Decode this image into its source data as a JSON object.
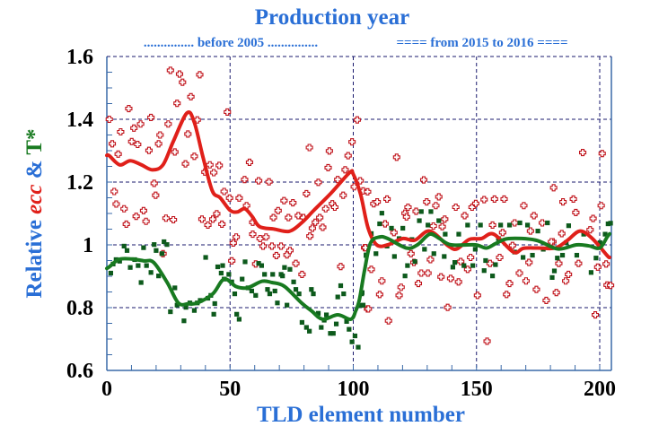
{
  "chart_data": {
    "type": "scatter",
    "title": "Production year",
    "subtitle_segments": [
      {
        "text": "............... before 2005 ...............",
        "x_from": 0,
        "x_to": 100
      },
      {
        "text": "==== from 2015 to 2016 ====",
        "x_from": 100,
        "x_to": 204
      }
    ],
    "xlabel": "TLD element number",
    "ylabel_parts": [
      {
        "text": "Relative ",
        "color": "#2a6fd6",
        "italic": false
      },
      {
        "text": "ecc",
        "color": "#e0201a",
        "italic": true
      },
      {
        "text": " & ",
        "color": "#2a6fd6",
        "italic": false
      },
      {
        "text": "T*",
        "color": "#187a20",
        "italic": false
      }
    ],
    "xlim": [
      0,
      204
    ],
    "ylim": [
      0.6,
      1.6
    ],
    "x_ticks": [
      "0",
      "50",
      "100",
      "150",
      "200"
    ],
    "x_tick_values": [
      0,
      50,
      100,
      150,
      200
    ],
    "y_ticks": [
      "0.6",
      "0.8",
      "1",
      "1.2",
      "1.4",
      "1.6"
    ],
    "y_tick_values": [
      0.6,
      0.8,
      1.0,
      1.2,
      1.4,
      1.6
    ],
    "grid": true,
    "colors": {
      "title": "#2a6fd6",
      "ecc": "#e0201a",
      "ecc_points": "#c0121a",
      "tstar": "#187a20",
      "tstar_points": "#0d5a1c",
      "grid": "#1a1a6e",
      "axis": "#3a6aa8"
    },
    "series": [
      {
        "key": "ecc",
        "kind": "points",
        "x": [
          1,
          2.2,
          4.6,
          3,
          3.8,
          5.6,
          7,
          7.9,
          8.9,
          10.1,
          11,
          11.9,
          12.5,
          13.7,
          14.9,
          15.9,
          17.1,
          17.9,
          19.2,
          19.8,
          21,
          21.6,
          22.8,
          24,
          24.9,
          25.8,
          27,
          27.6,
          28.5,
          29.5,
          30.7,
          31.9,
          32.9,
          34.1,
          35.5,
          36.7,
          37.7,
          38.6,
          39.8,
          41,
          41.8,
          43,
          43.4,
          44.6,
          45.6,
          46.7,
          47.6,
          48.9,
          49.8,
          50.7,
          51.3,
          52.5,
          53.7,
          55.9,
          56.7,
          57.9,
          59.2,
          59.2,
          60.4,
          61.6,
          62.2,
          63.4,
          64.6,
          65.8,
          67,
          67.6,
          68.8,
          69.5,
          70.7,
          71.9,
          73.1,
          73.7,
          74.3,
          75.5,
          76.7,
          77.7,
          79.2,
          79.8,
          81,
          82.2,
          82.4,
          83.4,
          84.6,
          85.8,
          86.4,
          87.6,
          88.8,
          89.8,
          90.3,
          91.5,
          92.5,
          93.7,
          94.9,
          95.9,
          96.7,
          97.9,
          99.5,
          101.6,
          100.4,
          102.8,
          104.6,
          105.8,
          104,
          105.8,
          108.3,
          109.7,
          113.7,
          117.6,
          121,
          121.6,
          122.2,
          125.5,
          128.6,
          129.8,
          133.5,
          134.7,
          137.1,
          141.6,
          145.2,
          148.2,
          149.7,
          153.1,
          157.3,
          161.2,
          169.2,
          173.3,
          181.3,
          185.1,
          189.3,
          190.3,
          193.1,
          197.3,
          200.6,
          201,
          104.9,
          107.3,
          111.6,
          110.7,
          106.1,
          114.3,
          118.6,
          119.4,
          123.4,
          124.6,
          126.4,
          127.6,
          130.3,
          131.3,
          135.6,
          138.3,
          139.5,
          142.7,
          143.6,
          146.4,
          147.6,
          150.4,
          154.3,
          155.5,
          159.4,
          162.2,
          163.4,
          164.6,
          167.4,
          170.1,
          171.3,
          174.3,
          178.3,
          182.4,
          183.4,
          186.2,
          187.3,
          191.4,
          198.2,
          199.2,
          202.6,
          203,
          181,
          184.6,
          196.1,
          116.5,
          112.9,
          132.5,
          136.1,
          156.5,
          160.6,
          165.5,
          171.9,
          176.7,
          180.4,
          204.4
        ],
        "y": [
          1.4,
          1.322,
          1.289,
          1.17,
          1.13,
          1.36,
          1.115,
          1.066,
          1.434,
          1.329,
          1.372,
          1.091,
          1.32,
          1.385,
          1.109,
          1.075,
          1.301,
          1.406,
          1.196,
          1.158,
          1.322,
          1.35,
          0.972,
          1.085,
          1.385,
          1.556,
          1.08,
          1.296,
          1.451,
          1.544,
          1.518,
          1.258,
          1.353,
          1.472,
          1.282,
          1.398,
          1.542,
          1.082,
          1.232,
          1.063,
          1.255,
          1.082,
          1.23,
          1.099,
          1.253,
          1.066,
          1.17,
          1.423,
          1.149,
          0.949,
          1.006,
          1.025,
          1.149,
          1.208,
          1.125,
          1.263,
          1.034,
          1.072,
          0.939,
          1.204,
          1.02,
          0.996,
          1.025,
          1.201,
          0.996,
          1.087,
          0.966,
          1.109,
          0.996,
          1.141,
          0.968,
          1.087,
          0.982,
          1.134,
          0.941,
          1.093,
          0.906,
          1.087,
          1.163,
          1.31,
          1.028,
          1.053,
          1.072,
          1.199,
          1.087,
          1.056,
          1.115,
          1.246,
          1.299,
          1.131,
          1.12,
          1.208,
          0.931,
          1.158,
          1.239,
          1.284,
          1.328,
          1.398,
          1.185,
          1.204,
          0.991,
          0.796,
          1.172,
          1.169,
          1.131,
          1.137,
          1.146,
          1.279,
          1.101,
          1.089,
          1.12,
          1.107,
          1.207,
          1.137,
          1.125,
          1.153,
          1.082,
          1.12,
          1.093,
          1.12,
          1.132,
          1.144,
          1.146,
          1.146,
          1.125,
          1.093,
          1.182,
          1.137,
          1.146,
          1.103,
          1.294,
          1.084,
          1.125,
          1.291,
          0.991,
          0.922,
          0.885,
          0.842,
          0.796,
          0.758,
          0.839,
          0.865,
          0.972,
          0.944,
          0.877,
          0.91,
          0.91,
          0.953,
          0.898,
          0.801,
          0.893,
          0.882,
          0.947,
          0.922,
          0.96,
          0.839,
          0.693,
          0.941,
          0.96,
          0.842,
          0.877,
          0.998,
          0.91,
          0.885,
          0.944,
          0.858,
          0.823,
          0.848,
          0.941,
          0.885,
          0.906,
          0.941,
          0.777,
          0.929,
          0.939,
          0.872,
          1.01,
          1.036,
          1.048,
          1.039,
          1.067,
          1.06,
          1.058,
          1.063,
          1.039,
          1.07,
          1.044,
          1.07,
          1.01,
          0.871
        ]
      },
      {
        "key": "tstar",
        "kind": "points",
        "x": [
          1.6,
          2.55,
          3.76,
          5.2,
          7,
          8.2,
          9.5,
          11.3,
          12.7,
          13.9,
          14.9,
          16.1,
          17.9,
          19.2,
          20,
          21,
          22.4,
          23.2,
          24.4,
          25.8,
          27.6,
          28.5,
          31.3,
          32.1,
          33.7,
          35.5,
          36.7,
          37.9,
          40.1,
          41,
          42.2,
          43.4,
          43.8,
          45,
          46.4,
          47,
          47.6,
          49.5,
          50.7,
          51.9,
          52.7,
          53.7,
          54.9,
          56.1,
          57.3,
          58.8,
          60.4,
          61.6,
          62.8,
          64,
          65.2,
          66.1,
          67.3,
          68.2,
          69.2,
          70.7,
          71.3,
          72.1,
          73.1,
          74.3,
          75.8,
          76.7,
          78,
          79.2,
          81,
          82.2,
          83,
          83.8,
          85.8,
          87,
          88.2,
          89.1,
          90.7,
          91.9,
          93.1,
          93.7,
          94.9,
          96.1,
          97.3,
          98.3,
          99.5,
          100.7,
          102,
          103.4,
          104,
          105.2,
          103.2,
          103.6,
          105.2,
          107.3,
          109.2,
          110.7,
          111.6,
          113.7,
          115.5,
          116.7,
          118.6,
          120.1,
          121,
          122,
          123.8,
          125,
          126.8,
          127.6,
          128.9,
          130.3,
          131.5,
          132.7,
          134.7,
          136.9,
          137.3,
          140.4,
          141.2,
          142.8,
          144.9,
          146.4,
          148.5,
          149.5,
          151.6,
          153.1,
          153.7,
          156.5,
          157.7,
          158.9,
          159.8,
          163.4,
          165.5,
          167.6,
          168.9,
          170.7,
          172.7,
          174.9,
          177.1,
          178.8,
          180.7,
          181.6,
          182.8,
          184.9,
          186.4,
          187.4,
          190.7,
          193.5,
          196.5,
          198.5,
          200.1,
          202.2,
          203.4,
          204.4
        ],
        "y": [
          0.91,
          0.939,
          0.953,
          0.948,
          0.996,
          0.982,
          0.928,
          0.953,
          0.934,
          0.88,
          0.991,
          0.934,
          0.912,
          1.001,
          0.982,
          0.901,
          0.972,
          1.01,
          1.001,
          0.787,
          0.863,
          0.808,
          0.758,
          0.801,
          0.815,
          0.791,
          0.815,
          0.823,
          0.96,
          0.83,
          0.839,
          0.779,
          0.813,
          0.93,
          0.91,
          0.934,
          0.891,
          0.906,
          0.882,
          0.844,
          0.779,
          0.763,
          0.891,
          0.946,
          0.863,
          0.853,
          0.839,
          0.941,
          0.934,
          0.906,
          0.858,
          0.844,
          0.906,
          0.853,
          0.815,
          0.906,
          0.901,
          0.928,
          0.808,
          0.922,
          0.882,
          0.858,
          0.844,
          0.753,
          0.737,
          0.725,
          0.858,
          0.844,
          0.782,
          0.737,
          0.76,
          0.777,
          0.718,
          0.718,
          0.748,
          0.834,
          0.87,
          0.844,
          0.756,
          0.731,
          0.691,
          0.71,
          0.674,
          0.844,
          0.808,
          0.968,
          0.807,
          0.848,
          0.966,
          1.036,
          0.972,
          1.067,
          1.101,
          0.996,
          1.053,
          0.963,
          1.02,
          1.053,
          0.901,
          0.934,
          1.017,
          0.947,
          1.077,
          1.106,
          0.986,
          1.063,
          1.106,
          0.972,
          1.077,
          0.963,
          1.034,
          0.929,
          0.944,
          1.034,
          0.934,
          1.063,
          0.934,
          0.986,
          1.063,
          0.918,
          0.95,
          0.901,
          0.937,
          1.02,
          1.063,
          1.063,
          0.977,
          1.07,
          0.96,
          1.063,
          0.967,
          1.044,
          0.986,
          1.07,
          0.896,
          0.917,
          0.958,
          0.967,
          1.007,
          1.061,
          0.967,
          1.034,
          0.912,
          0.958,
          1.007,
          1.034,
          1.067,
          1.069
        ]
      },
      {
        "key": "ecc",
        "kind": "smooth-line",
        "x": [
          0,
          1,
          5.2,
          9.5,
          14,
          18.5,
          22.8,
          27,
          32.5,
          35.5,
          39,
          42.8,
          46,
          50,
          53,
          56,
          59,
          62,
          68,
          74,
          79,
          84,
          91,
          98.5,
          100,
          103,
          106,
          109.5,
          114,
          120,
          125,
          131,
          138.5,
          142,
          147,
          152,
          157,
          165,
          169,
          175,
          182,
          187,
          192,
          197,
          203,
          204
        ],
        "y": [
          1.285,
          1.284,
          1.255,
          1.268,
          1.255,
          1.239,
          1.255,
          1.33,
          1.42,
          1.39,
          1.28,
          1.172,
          1.15,
          1.11,
          1.105,
          1.115,
          1.09,
          1.058,
          1.05,
          1.043,
          1.07,
          1.11,
          1.165,
          1.23,
          1.225,
          1.16,
          1.054,
          1.0,
          1.0,
          1.02,
          1.015,
          1.044,
          0.997,
          0.987,
          1.017,
          1.02,
          1.034,
          0.977,
          0.989,
          0.99,
          0.99,
          1.015,
          1.044,
          1.02,
          0.966,
          0.96
        ]
      },
      {
        "key": "tstar",
        "kind": "smooth-line",
        "x": [
          0,
          1,
          5,
          10,
          15,
          19,
          24.5,
          29,
          33,
          36.7,
          43,
          47.6,
          52.5,
          57,
          63,
          67,
          72,
          79,
          83,
          87.6,
          93.7,
          99,
          101,
          102.5,
          104.6,
          107,
          110.7,
          114,
          121.5,
          126,
          131,
          135,
          139.7,
          149.5,
          154,
          158,
          163,
          174,
          183,
          190.5,
          195.5,
          200,
          203,
          204
        ],
        "y": [
          0.925,
          0.93,
          0.954,
          0.955,
          0.949,
          0.944,
          0.88,
          0.815,
          0.812,
          0.815,
          0.844,
          0.891,
          0.867,
          0.863,
          0.884,
          0.88,
          0.868,
          0.815,
          0.79,
          0.763,
          0.777,
          0.763,
          0.79,
          0.826,
          0.92,
          1.006,
          1.025,
          1.02,
          0.99,
          1.0,
          1.034,
          1.02,
          1.0,
          1.0,
          0.99,
          1.005,
          1.02,
          1.015,
          0.987,
          1.0,
          0.997,
          0.99,
          1.025,
          1.035
        ]
      }
    ]
  }
}
